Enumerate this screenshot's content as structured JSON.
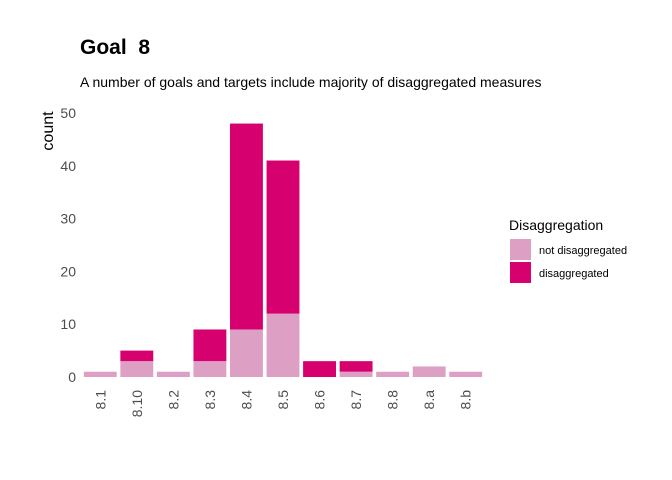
{
  "chart_data": {
    "type": "bar",
    "stacked": true,
    "title": "Goal  8",
    "subtitle": "A number of goals and targets include majority of disaggregated measures",
    "xlabel": "",
    "ylabel": "count",
    "ylim": [
      0,
      50
    ],
    "yticks": [
      0,
      10,
      20,
      30,
      40,
      50
    ],
    "grid": false,
    "legend": {
      "title": "Disaggregation",
      "placement": "right"
    },
    "categories": [
      "8.1",
      "8.10",
      "8.2",
      "8.3",
      "8.4",
      "8.5",
      "8.6",
      "8.7",
      "8.8",
      "8.a",
      "8.b"
    ],
    "series": [
      {
        "name": "not disaggregated",
        "color": "#DDA0C4",
        "values": [
          1,
          3,
          1,
          3,
          9,
          12,
          0,
          1,
          1,
          2,
          1
        ]
      },
      {
        "name": "disaggregated",
        "color": "#D6006F",
        "values": [
          0,
          2,
          0,
          6,
          39,
          29,
          3,
          2,
          0,
          0,
          0
        ]
      }
    ]
  }
}
